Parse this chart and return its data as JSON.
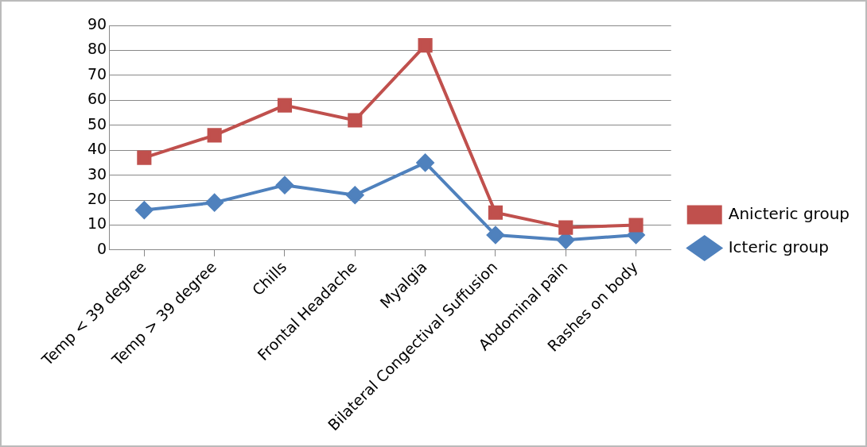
{
  "chart_data": {
    "type": "line",
    "categories": [
      "Temp < 39 degree",
      "Temp > 39 degree",
      "Chills",
      "Frontal Headache",
      "Myalgia",
      "Bilateral Congectival Suffusion",
      "Abdominal pain",
      "Rashes on body"
    ],
    "series": [
      {
        "name": "Anicteric group",
        "color": "#c0504d",
        "marker": "square",
        "values": [
          37,
          46,
          58,
          52,
          82,
          15,
          9,
          10
        ]
      },
      {
        "name": "Icteric group",
        "color": "#4f81bd",
        "marker": "diamond",
        "values": [
          16,
          19,
          26,
          22,
          35,
          6,
          4,
          6
        ]
      }
    ],
    "ylim": [
      0,
      90
    ],
    "yticks": [
      0,
      10,
      20,
      30,
      40,
      50,
      60,
      70,
      80,
      90
    ],
    "grid": "y",
    "legend": "right",
    "line_style": "solid"
  }
}
